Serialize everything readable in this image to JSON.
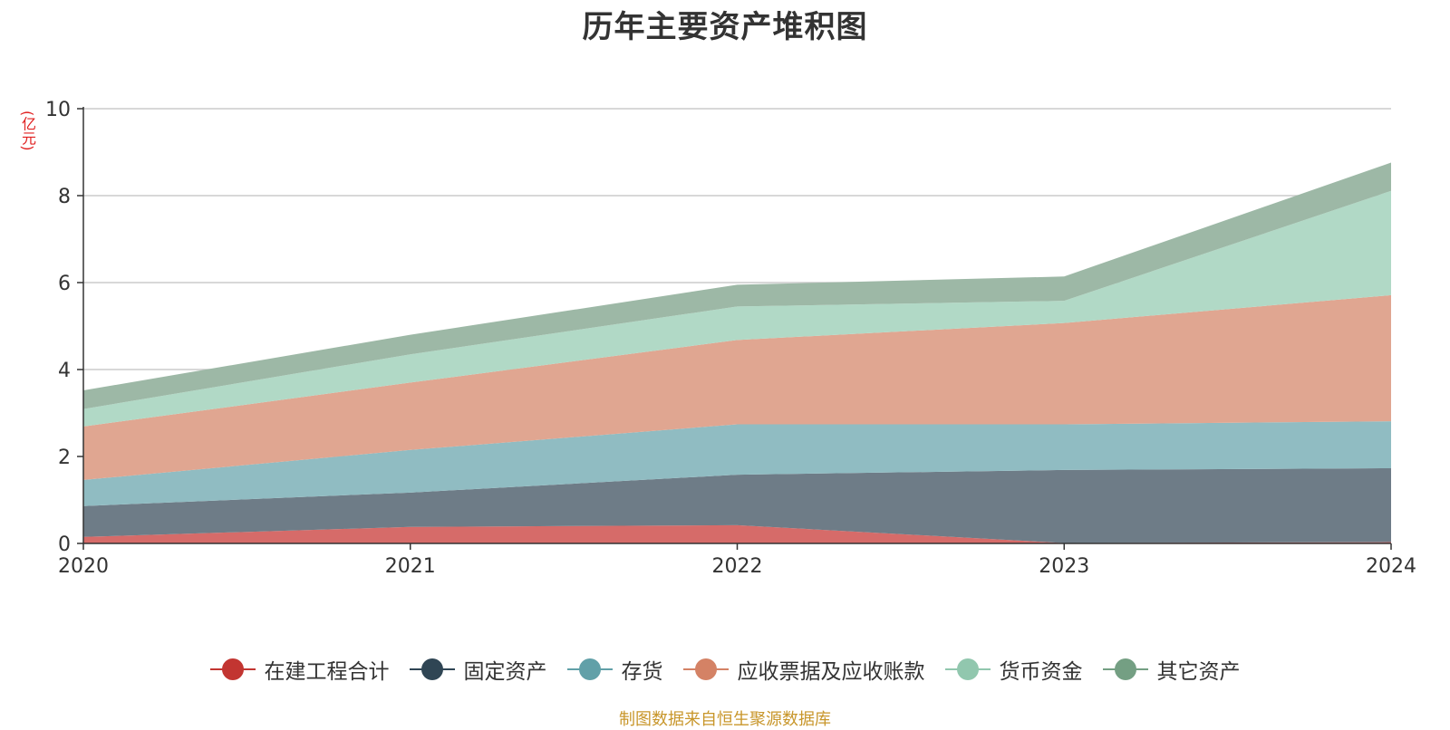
{
  "chart_data": {
    "type": "area",
    "stacked": true,
    "title": "历年主要资产堆积图",
    "ylabel": "(亿元)",
    "xlabel": "",
    "categories": [
      "2020",
      "2021",
      "2022",
      "2023",
      "2024"
    ],
    "ylim": [
      0,
      10
    ],
    "yticks": [
      "0",
      "2",
      "4",
      "6",
      "8",
      "10"
    ],
    "grid": true,
    "legend_position": "bottom",
    "series": [
      {
        "name": "在建工程合计",
        "color": "#c23531",
        "fill": "#d66b69",
        "values": [
          0.15,
          0.38,
          0.42,
          0.01,
          0.03
        ]
      },
      {
        "name": "固定资产",
        "color": "#2f4554",
        "fill": "#6e7c87",
        "values": [
          0.71,
          0.79,
          1.16,
          1.68,
          1.7
        ]
      },
      {
        "name": "存货",
        "color": "#61a0a8",
        "fill": "#90bcc2",
        "values": [
          0.6,
          0.98,
          1.16,
          1.05,
          1.08
        ]
      },
      {
        "name": "应收票据及应收账款",
        "color": "#d48265",
        "fill": "#e0a691",
        "values": [
          1.23,
          1.55,
          1.94,
          2.33,
          2.9
        ]
      },
      {
        "name": "货币资金",
        "color": "#91c7ae",
        "fill": "#b1d9c6",
        "values": [
          0.4,
          0.65,
          0.77,
          0.51,
          2.4
        ]
      },
      {
        "name": "其它资产",
        "color": "#749f83",
        "fill": "#9db8a6",
        "values": [
          0.43,
          0.45,
          0.5,
          0.56,
          0.65
        ]
      }
    ],
    "source_note": "制图数据来自恒生聚源数据库"
  }
}
